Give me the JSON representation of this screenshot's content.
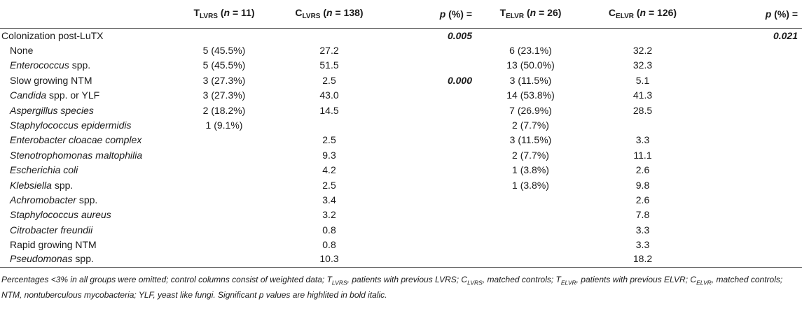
{
  "header": {
    "col1": {
      "pre": "T",
      "sub": "LVRS",
      "post": " (",
      "n": "n",
      "eq": " = 11)"
    },
    "col2": {
      "pre": "C",
      "sub": "LVRS",
      "post": " (",
      "n": "n",
      "eq": " = 138)"
    },
    "col3": {
      "p": "p",
      "rest": " (%) ="
    },
    "col4": {
      "pre": "T",
      "sub": "ELVR",
      "post": " (",
      "n": "n",
      "eq": " = 26)"
    },
    "col5": {
      "pre": "C",
      "sub": "ELVR",
      "post": " (",
      "n": "n",
      "eq": " = 126)"
    },
    "col6": {
      "p": "p",
      "rest": " (%) ="
    }
  },
  "rows": [
    {
      "label": "Colonization post-LuTX",
      "italic": false,
      "group": true,
      "t_lvrs": "",
      "c_lvrs": "",
      "p_lvrs": "0.005",
      "t_elvr": "",
      "c_elvr": "",
      "p_elvr": "0.021"
    },
    {
      "label": "None",
      "italic": false,
      "t_lvrs": "5 (45.5%)",
      "c_lvrs": "27.2",
      "p_lvrs": "",
      "t_elvr": "6 (23.1%)",
      "c_elvr": "32.2",
      "p_elvr": ""
    },
    {
      "label_it": "Enterococcus",
      "label_rest": " spp.",
      "t_lvrs": "5 (45.5%)",
      "c_lvrs": "51.5",
      "p_lvrs": "",
      "t_elvr": "13 (50.0%)",
      "c_elvr": "32.3",
      "p_elvr": ""
    },
    {
      "label": "Slow growing NTM",
      "italic": false,
      "t_lvrs": "3 (27.3%)",
      "c_lvrs": "2.5",
      "p_lvrs": "0.000",
      "t_elvr": "3 (11.5%)",
      "c_elvr": "5.1",
      "p_elvr": ""
    },
    {
      "label_it": "Candida",
      "label_rest": " spp. or YLF",
      "t_lvrs": "3 (27.3%)",
      "c_lvrs": "43.0",
      "p_lvrs": "",
      "t_elvr": "14 (53.8%)",
      "c_elvr": "41.3",
      "p_elvr": ""
    },
    {
      "label": "Aspergillus species",
      "italic": true,
      "t_lvrs": "2 (18.2%)",
      "c_lvrs": "14.5",
      "p_lvrs": "",
      "t_elvr": "7 (26.9%)",
      "c_elvr": "28.5",
      "p_elvr": ""
    },
    {
      "label": "Staphylococcus epidermidis",
      "italic": true,
      "t_lvrs": "1 (9.1%)",
      "c_lvrs": "",
      "p_lvrs": "",
      "t_elvr": "2 (7.7%)",
      "c_elvr": "",
      "p_elvr": ""
    },
    {
      "label": "Enterobacter cloacae complex",
      "italic": true,
      "t_lvrs": "",
      "c_lvrs": "2.5",
      "p_lvrs": "",
      "t_elvr": "3 (11.5%)",
      "c_elvr": "3.3",
      "p_elvr": ""
    },
    {
      "label": "Stenotrophomonas maltophilia",
      "italic": true,
      "t_lvrs": "",
      "c_lvrs": "9.3",
      "p_lvrs": "",
      "t_elvr": "2 (7.7%)",
      "c_elvr": "11.1",
      "p_elvr": ""
    },
    {
      "label": "Escherichia coli",
      "italic": true,
      "t_lvrs": "",
      "c_lvrs": "4.2",
      "p_lvrs": "",
      "t_elvr": "1 (3.8%)",
      "c_elvr": "2.6",
      "p_elvr": ""
    },
    {
      "label_it": "Klebsiella",
      "label_rest": " spp.",
      "t_lvrs": "",
      "c_lvrs": "2.5",
      "p_lvrs": "",
      "t_elvr": "1 (3.8%)",
      "c_elvr": "9.8",
      "p_elvr": ""
    },
    {
      "label_it": "Achromobacter",
      "label_rest": " spp.",
      "t_lvrs": "",
      "c_lvrs": "3.4",
      "p_lvrs": "",
      "t_elvr": "",
      "c_elvr": "2.6",
      "p_elvr": ""
    },
    {
      "label": "Staphylococcus aureus",
      "italic": true,
      "t_lvrs": "",
      "c_lvrs": "3.2",
      "p_lvrs": "",
      "t_elvr": "",
      "c_elvr": "7.8",
      "p_elvr": ""
    },
    {
      "label": "Citrobacter freundii",
      "italic": true,
      "t_lvrs": "",
      "c_lvrs": "0.8",
      "p_lvrs": "",
      "t_elvr": "",
      "c_elvr": "3.3",
      "p_elvr": ""
    },
    {
      "label": "Rapid growing NTM",
      "italic": false,
      "t_lvrs": "",
      "c_lvrs": "0.8",
      "p_lvrs": "",
      "t_elvr": "",
      "c_elvr": "3.3",
      "p_elvr": ""
    },
    {
      "label_it": "Pseudomonas",
      "label_rest": " spp.",
      "t_lvrs": "",
      "c_lvrs": "10.3",
      "p_lvrs": "",
      "t_elvr": "",
      "c_elvr": "18.2",
      "p_elvr": ""
    }
  ],
  "footnote": {
    "a": "Percentages <3% in all groups were omitted; control columns consist of weighted data; T",
    "s1": "LVRS",
    "b": ", patients with previous LVRS; C",
    "s2": "LVRS",
    "c": ", matched controls; T",
    "s3": "ELVR",
    "d": ", patients with previous ELVR; C",
    "s4": "ELVR",
    "e": ", matched controls; NTM, nontuberculous mycobacteria; YLF, yeast like fungi. Significant p values are highlited in bold italic."
  }
}
